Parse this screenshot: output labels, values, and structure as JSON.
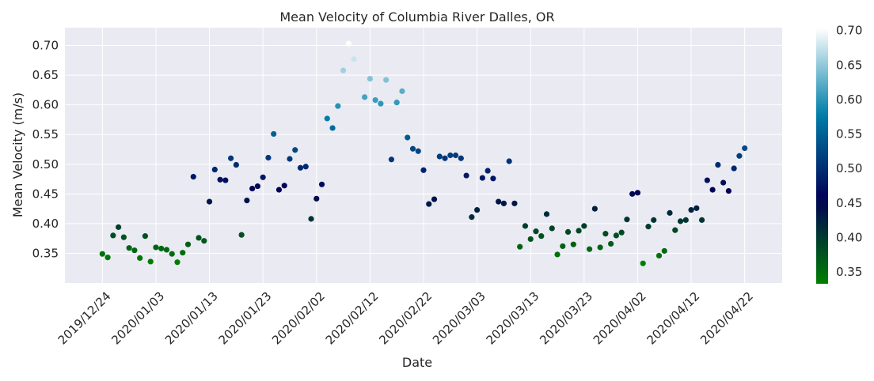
{
  "chart_data": {
    "type": "scatter",
    "title": "Mean Velocity of Columbia River Dalles, OR",
    "xlabel": "Date",
    "ylabel": "Mean Velocity (m/s)",
    "x_tick_labels": [
      "2019/12/24",
      "2020/01/03",
      "2020/01/13",
      "2020/01/23",
      "2020/02/02",
      "2020/02/12",
      "2020/02/22",
      "2020/03/03",
      "2020/03/13",
      "2020/03/23",
      "2020/04/02",
      "2020/04/12",
      "2020/04/22"
    ],
    "y_tick_labels": [
      "0.35",
      "0.40",
      "0.45",
      "0.50",
      "0.55",
      "0.60",
      "0.65",
      "0.70"
    ],
    "y_ticks": [
      0.35,
      0.4,
      0.45,
      0.5,
      0.55,
      0.6,
      0.65,
      0.7
    ],
    "ylim": [
      0.3,
      0.73
    ],
    "xlim": [
      "2019/12/17",
      "2020/04/29"
    ],
    "colorbar": {
      "colormap": "ocean",
      "range": [
        0.333,
        0.703
      ],
      "tick_labels": [
        "0.35",
        "0.40",
        "0.45",
        "0.50",
        "0.55",
        "0.60",
        "0.65",
        "0.70"
      ],
      "ticks": [
        0.35,
        0.4,
        0.45,
        0.5,
        0.55,
        0.6,
        0.65,
        0.7
      ]
    },
    "grid": true,
    "background": "#eaeaf2",
    "points": [
      {
        "x": "2019/12/24",
        "y": 0.349
      },
      {
        "x": "2019/12/25",
        "y": 0.343
      },
      {
        "x": "2019/12/26",
        "y": 0.38
      },
      {
        "x": "2019/12/27",
        "y": 0.394
      },
      {
        "x": "2019/12/28",
        "y": 0.377
      },
      {
        "x": "2019/12/29",
        "y": 0.359
      },
      {
        "x": "2019/12/30",
        "y": 0.355
      },
      {
        "x": "2019/12/31",
        "y": 0.342
      },
      {
        "x": "2020/01/01",
        "y": 0.379
      },
      {
        "x": "2020/01/02",
        "y": 0.336
      },
      {
        "x": "2020/01/03",
        "y": 0.36
      },
      {
        "x": "2020/01/04",
        "y": 0.358
      },
      {
        "x": "2020/01/05",
        "y": 0.356
      },
      {
        "x": "2020/01/06",
        "y": 0.349
      },
      {
        "x": "2020/01/07",
        "y": 0.335
      },
      {
        "x": "2020/01/08",
        "y": 0.351
      },
      {
        "x": "2020/01/09",
        "y": 0.365
      },
      {
        "x": "2020/01/10",
        "y": 0.479
      },
      {
        "x": "2020/01/11",
        "y": 0.376
      },
      {
        "x": "2020/01/12",
        "y": 0.371
      },
      {
        "x": "2020/01/13",
        "y": 0.437
      },
      {
        "x": "2020/01/14",
        "y": 0.491
      },
      {
        "x": "2020/01/15",
        "y": 0.474
      },
      {
        "x": "2020/01/16",
        "y": 0.473
      },
      {
        "x": "2020/01/17",
        "y": 0.51
      },
      {
        "x": "2020/01/18",
        "y": 0.499
      },
      {
        "x": "2020/01/19",
        "y": 0.381
      },
      {
        "x": "2020/01/20",
        "y": 0.439
      },
      {
        "x": "2020/01/21",
        "y": 0.459
      },
      {
        "x": "2020/01/22",
        "y": 0.463
      },
      {
        "x": "2020/01/23",
        "y": 0.478
      },
      {
        "x": "2020/01/24",
        "y": 0.511
      },
      {
        "x": "2020/01/25",
        "y": 0.551
      },
      {
        "x": "2020/01/26",
        "y": 0.457
      },
      {
        "x": "2020/01/27",
        "y": 0.464
      },
      {
        "x": "2020/01/28",
        "y": 0.509
      },
      {
        "x": "2020/01/29",
        "y": 0.524
      },
      {
        "x": "2020/01/30",
        "y": 0.494
      },
      {
        "x": "2020/01/31",
        "y": 0.496
      },
      {
        "x": "2020/02/01",
        "y": 0.408
      },
      {
        "x": "2020/02/02",
        "y": 0.442
      },
      {
        "x": "2020/02/03",
        "y": 0.466
      },
      {
        "x": "2020/02/04",
        "y": 0.577
      },
      {
        "x": "2020/02/05",
        "y": 0.561
      },
      {
        "x": "2020/02/06",
        "y": 0.598
      },
      {
        "x": "2020/02/07",
        "y": 0.658
      },
      {
        "x": "2020/02/08",
        "y": 0.703
      },
      {
        "x": "2020/02/09",
        "y": 0.677
      },
      {
        "x": "2020/02/11",
        "y": 0.613
      },
      {
        "x": "2020/02/12",
        "y": 0.644
      },
      {
        "x": "2020/02/13",
        "y": 0.608
      },
      {
        "x": "2020/02/14",
        "y": 0.602
      },
      {
        "x": "2020/02/15",
        "y": 0.642
      },
      {
        "x": "2020/02/16",
        "y": 0.508
      },
      {
        "x": "2020/02/17",
        "y": 0.604
      },
      {
        "x": "2020/02/18",
        "y": 0.623
      },
      {
        "x": "2020/02/19",
        "y": 0.545
      },
      {
        "x": "2020/02/20",
        "y": 0.526
      },
      {
        "x": "2020/02/21",
        "y": 0.522
      },
      {
        "x": "2020/02/22",
        "y": 0.49
      },
      {
        "x": "2020/02/23",
        "y": 0.433
      },
      {
        "x": "2020/02/24",
        "y": 0.441
      },
      {
        "x": "2020/02/25",
        "y": 0.513
      },
      {
        "x": "2020/02/26",
        "y": 0.51
      },
      {
        "x": "2020/02/27",
        "y": 0.515
      },
      {
        "x": "2020/02/28",
        "y": 0.515
      },
      {
        "x": "2020/02/29",
        "y": 0.51
      },
      {
        "x": "2020/03/01",
        "y": 0.481
      },
      {
        "x": "2020/03/02",
        "y": 0.411
      },
      {
        "x": "2020/03/03",
        "y": 0.423
      },
      {
        "x": "2020/03/04",
        "y": 0.477
      },
      {
        "x": "2020/03/05",
        "y": 0.489
      },
      {
        "x": "2020/03/06",
        "y": 0.476
      },
      {
        "x": "2020/03/07",
        "y": 0.437
      },
      {
        "x": "2020/03/08",
        "y": 0.434
      },
      {
        "x": "2020/03/09",
        "y": 0.505
      },
      {
        "x": "2020/03/10",
        "y": 0.434
      },
      {
        "x": "2020/03/11",
        "y": 0.361
      },
      {
        "x": "2020/03/12",
        "y": 0.396
      },
      {
        "x": "2020/03/13",
        "y": 0.374
      },
      {
        "x": "2020/03/14",
        "y": 0.387
      },
      {
        "x": "2020/03/15",
        "y": 0.379
      },
      {
        "x": "2020/03/16",
        "y": 0.416
      },
      {
        "x": "2020/03/17",
        "y": 0.392
      },
      {
        "x": "2020/03/18",
        "y": 0.348
      },
      {
        "x": "2020/03/19",
        "y": 0.362
      },
      {
        "x": "2020/03/20",
        "y": 0.386
      },
      {
        "x": "2020/03/21",
        "y": 0.365
      },
      {
        "x": "2020/03/22",
        "y": 0.388
      },
      {
        "x": "2020/03/23",
        "y": 0.396
      },
      {
        "x": "2020/03/24",
        "y": 0.357
      },
      {
        "x": "2020/03/25",
        "y": 0.425
      },
      {
        "x": "2020/03/26",
        "y": 0.36
      },
      {
        "x": "2020/03/27",
        "y": 0.383
      },
      {
        "x": "2020/03/28",
        "y": 0.366
      },
      {
        "x": "2020/03/29",
        "y": 0.38
      },
      {
        "x": "2020/03/30",
        "y": 0.385
      },
      {
        "x": "2020/03/31",
        "y": 0.407
      },
      {
        "x": "2020/04/01",
        "y": 0.45
      },
      {
        "x": "2020/04/02",
        "y": 0.452
      },
      {
        "x": "2020/04/03",
        "y": 0.333
      },
      {
        "x": "2020/04/04",
        "y": 0.395
      },
      {
        "x": "2020/04/05",
        "y": 0.406
      },
      {
        "x": "2020/04/06",
        "y": 0.346
      },
      {
        "x": "2020/04/07",
        "y": 0.354
      },
      {
        "x": "2020/04/08",
        "y": 0.418
      },
      {
        "x": "2020/04/09",
        "y": 0.389
      },
      {
        "x": "2020/04/10",
        "y": 0.404
      },
      {
        "x": "2020/04/11",
        "y": 0.406
      },
      {
        "x": "2020/04/12",
        "y": 0.423
      },
      {
        "x": "2020/04/13",
        "y": 0.426
      },
      {
        "x": "2020/04/14",
        "y": 0.406
      },
      {
        "x": "2020/04/15",
        "y": 0.473
      },
      {
        "x": "2020/04/16",
        "y": 0.457
      },
      {
        "x": "2020/04/17",
        "y": 0.499
      },
      {
        "x": "2020/04/18",
        "y": 0.469
      },
      {
        "x": "2020/04/19",
        "y": 0.455
      },
      {
        "x": "2020/04/20",
        "y": 0.493
      },
      {
        "x": "2020/04/21",
        "y": 0.514
      },
      {
        "x": "2020/04/22",
        "y": 0.527
      }
    ]
  }
}
